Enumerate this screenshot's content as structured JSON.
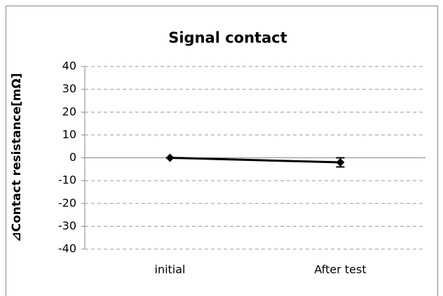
{
  "chart_data": {
    "type": "line",
    "title": "Signal contact",
    "y_label": "⊿Contact resistance[mΩ]",
    "categories": [
      "initial",
      "After test"
    ],
    "values": [
      0,
      -2
    ],
    "errors": [
      0,
      2
    ],
    "color": "#000000",
    "ylim": [
      -40,
      40
    ],
    "yticks": [
      -40,
      -30,
      -20,
      -10,
      0,
      10,
      20,
      30,
      40
    ],
    "grid": true
  }
}
